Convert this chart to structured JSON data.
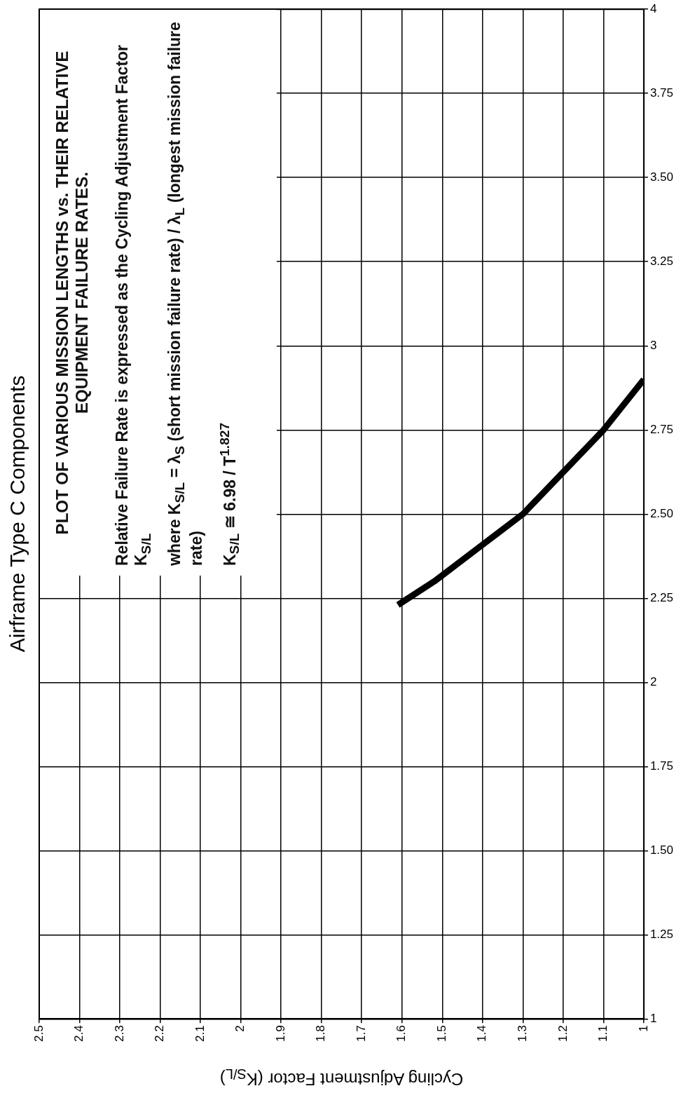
{
  "chart_data": {
    "type": "line",
    "title": "Airframe Type C Components",
    "xlabel": "Cycling Adjustment Factor (K$_{S/L}$)",
    "x": [
      1.61,
      1.52,
      1.41,
      1.3,
      1.22,
      1.1,
      1.0
    ],
    "series": [
      {
        "color": "#000000",
        "values": [
          2.23,
          2.3,
          2.4,
          2.5,
          2.6,
          2.75,
          2.9
        ]
      }
    ],
    "xlim": [
      2.5,
      1
    ],
    "xticks": [
      2.5,
      2.4,
      2.3,
      2.2,
      2.1,
      2,
      1.9,
      1.8,
      1.7,
      1.6,
      1.5,
      1.4,
      1.3,
      1.2,
      1.1,
      1
    ],
    "ylim": [
      1,
      4
    ],
    "yticks": [
      1,
      {
        "value": 1.25,
        "label": "1.25"
      },
      {
        "value": 1.5,
        "label": "1.50"
      },
      {
        "value": 1.75,
        "label": "1.75"
      },
      2,
      {
        "value": 2.25,
        "label": "2.25"
      },
      {
        "value": 2.5,
        "label": "2.50"
      },
      {
        "value": 2.75,
        "label": "2.75"
      },
      3,
      {
        "value": 3.25,
        "label": "3.25"
      },
      {
        "value": 3.5,
        "label": "3.50"
      },
      {
        "value": 3.75,
        "label": "3.75"
      },
      4
    ],
    "grid": true,
    "marker": "none",
    "annotations": [
      "PLOT OF VARIOUS MISSION LENGTHS vs. THEIR RELATIVE EQUIPMENT FAILURE RATES.",
      "Relative Failure Rate is expressed as the Cycling Adjustment Factor K$_{S/L}$",
      "where K$_{S/L}$ = λ$_{S}$ (short mission failure rate) / λ$_{L}$ (longest mission failure rate)",
      "K$_{S/L}$ ≅ 6.98 / T$^{1.827}$"
    ]
  }
}
